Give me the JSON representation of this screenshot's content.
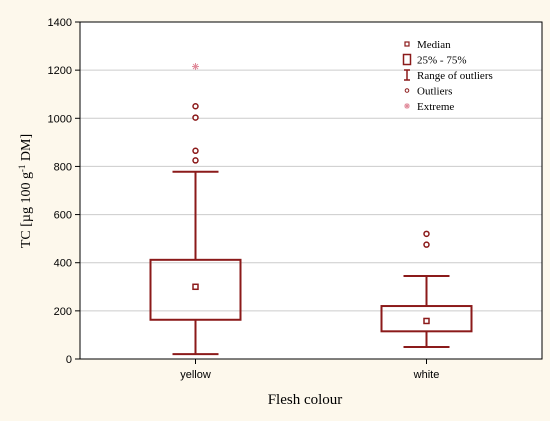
{
  "chart_data": {
    "type": "box",
    "xlabel": "Flesh colour",
    "ylabel": {
      "prefix": "TC [µg 100 g",
      "superscript": "-1",
      "suffix": " DM]"
    },
    "ylim": [
      0,
      1400
    ],
    "yticks": [
      0,
      200,
      400,
      600,
      800,
      1000,
      1200,
      1400
    ],
    "grid": true,
    "legend_position": "top-right",
    "colors": {
      "primary": "#8b1a1a",
      "extreme": "#e08a9a",
      "grid": "#cccccc",
      "background": "#fdf8ec"
    },
    "categories": [
      "yellow",
      "white"
    ],
    "boxes": [
      {
        "category": "yellow",
        "median": 300,
        "q1": 163,
        "q3": 412,
        "whisker_low": 20,
        "whisker_high": 778,
        "outliers": [
          825,
          865,
          1003,
          1050
        ],
        "extremes": [
          1215
        ]
      },
      {
        "category": "white",
        "median": 158,
        "q1": 115,
        "q3": 220,
        "whisker_low": 50,
        "whisker_high": 345,
        "outliers": [
          475,
          520
        ],
        "extremes": []
      }
    ],
    "legend": [
      {
        "label": "Median",
        "symbol": "median"
      },
      {
        "label": "25% - 75%",
        "symbol": "box"
      },
      {
        "label": "Range of outliers",
        "symbol": "range"
      },
      {
        "label": "Outliers",
        "symbol": "outlier"
      },
      {
        "label": "Extreme",
        "symbol": "extreme"
      }
    ]
  }
}
